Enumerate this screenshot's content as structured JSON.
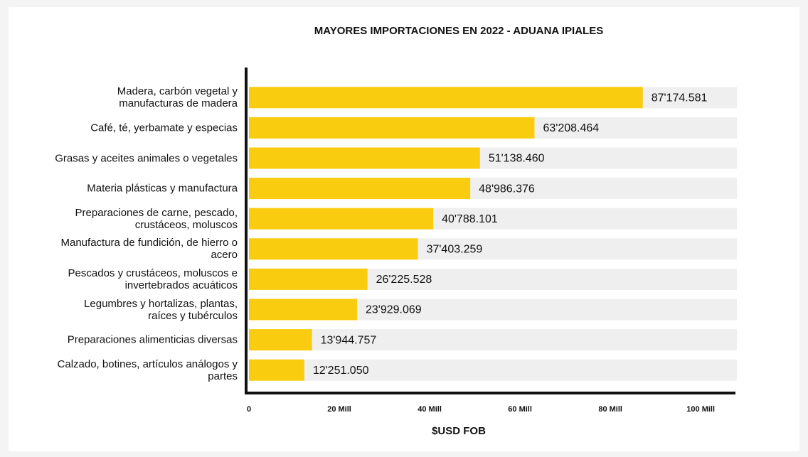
{
  "chart_data": {
    "type": "hbar",
    "title": "MAYORES IMPORTACIONES EN 2022 - ADUANA IPIALES",
    "x_label": "$USD FOB",
    "categories": [
      "Madera, carbón vegetal y manufacturas de madera",
      "Café, té, yerbamate y especias",
      "Grasas y aceites animales o vegetales",
      "Materia plásticas y manufactura",
      "Preparaciones de carne, pescado, crustáceos, moluscos",
      "Manufactura de fundición, de hierro o acero",
      "Pescados y crustáceos, moluscos e invertebrados acuáticos",
      "Legumbres y hortalizas, plantas, raíces y tubérculos",
      "Preparaciones alimenticias diversas",
      "Calzado, botines, artículos análogos y partes"
    ],
    "values": [
      87174581,
      63208464,
      51138460,
      48986376,
      40788101,
      37403259,
      26225528,
      23929069,
      13944757,
      12251050
    ],
    "value_labels": [
      "87'174.581",
      "63'208.464",
      "51'138.460",
      "48'986.376",
      "40'788.101",
      "37'403.259",
      "26'225.528",
      "23'929.069",
      "13'944.757",
      "12'251.050"
    ],
    "color": "#f9cc10",
    "xlim": [
      0,
      108000000
    ],
    "xticks": [
      0,
      {
        "value": 20000000,
        "label": "20 Mill"
      },
      {
        "value": 40000000,
        "label": "40 Mill"
      },
      {
        "value": 60000000,
        "label": "60 Mill"
      },
      {
        "value": 80000000,
        "label": "80 Mill"
      },
      {
        "value": 100000000,
        "label": "100 Mill"
      }
    ]
  }
}
